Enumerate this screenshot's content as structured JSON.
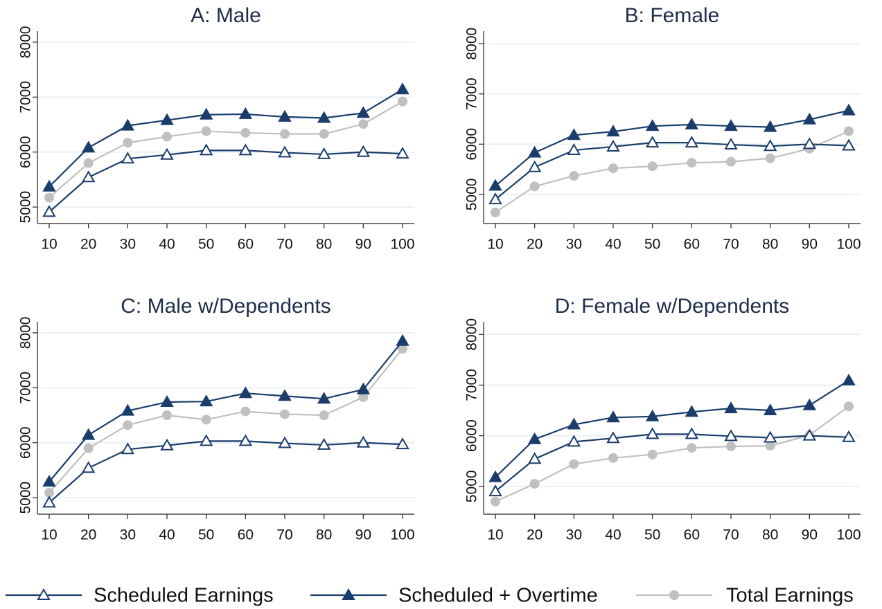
{
  "chart_data": [
    {
      "type": "line",
      "title": "A: Male",
      "x": [
        10,
        20,
        30,
        40,
        50,
        60,
        70,
        80,
        90,
        100
      ],
      "xlim": [
        7,
        103
      ],
      "xticks": [
        10,
        20,
        30,
        40,
        50,
        60,
        70,
        80,
        90,
        100
      ],
      "ylim": [
        4700,
        8200
      ],
      "yticks": [
        5000,
        6000,
        7000,
        8000
      ],
      "grid": true,
      "series": [
        {
          "name": "Scheduled Earnings",
          "color": "#1a3d6b",
          "marker": "triangle-open",
          "values": [
            4910,
            5540,
            5880,
            5950,
            6030,
            6030,
            5990,
            5960,
            6000,
            5970
          ]
        },
        {
          "name": "Scheduled + Overtime",
          "color": "#1a3d6b",
          "marker": "triangle",
          "values": [
            5370,
            6080,
            6480,
            6580,
            6680,
            6690,
            6640,
            6620,
            6710,
            7140
          ]
        },
        {
          "name": "Total Earnings",
          "color": "#c0c0c0",
          "marker": "circle",
          "values": [
            5170,
            5800,
            6170,
            6280,
            6380,
            6350,
            6330,
            6330,
            6510,
            6920
          ]
        }
      ]
    },
    {
      "type": "line",
      "title": "B: Female",
      "x": [
        10,
        20,
        30,
        40,
        50,
        60,
        70,
        80,
        90,
        100
      ],
      "xlim": [
        7,
        103
      ],
      "xticks": [
        10,
        20,
        30,
        40,
        50,
        60,
        70,
        80,
        90,
        100
      ],
      "ylim": [
        4420,
        8250
      ],
      "yticks": [
        5000,
        6000,
        7000,
        8000
      ],
      "grid": true,
      "series": [
        {
          "name": "Scheduled Earnings",
          "color": "#1a3d6b",
          "marker": "triangle-open",
          "values": [
            4900,
            5540,
            5880,
            5950,
            6030,
            6030,
            5990,
            5960,
            6000,
            5970
          ]
        },
        {
          "name": "Scheduled + Overtime",
          "color": "#1a3d6b",
          "marker": "triangle",
          "values": [
            5170,
            5830,
            6180,
            6250,
            6360,
            6390,
            6360,
            6340,
            6490,
            6670
          ]
        },
        {
          "name": "Total Earnings",
          "color": "#c0c0c0",
          "marker": "circle",
          "values": [
            4640,
            5160,
            5370,
            5520,
            5560,
            5630,
            5650,
            5720,
            5910,
            6260
          ]
        }
      ]
    },
    {
      "type": "line",
      "title": "C: Male w/Dependents",
      "x": [
        10,
        20,
        30,
        40,
        50,
        60,
        70,
        80,
        90,
        100
      ],
      "xlim": [
        7,
        103
      ],
      "xticks": [
        10,
        20,
        30,
        40,
        50,
        60,
        70,
        80,
        90,
        100
      ],
      "ylim": [
        4700,
        8200
      ],
      "yticks": [
        5000,
        6000,
        7000,
        8000
      ],
      "grid": true,
      "series": [
        {
          "name": "Scheduled Earnings",
          "color": "#1a3d6b",
          "marker": "triangle-open",
          "values": [
            4910,
            5540,
            5880,
            5950,
            6030,
            6030,
            5990,
            5960,
            6000,
            5970
          ]
        },
        {
          "name": "Scheduled + Overtime",
          "color": "#1a3d6b",
          "marker": "triangle",
          "values": [
            5290,
            6140,
            6580,
            6740,
            6750,
            6900,
            6850,
            6800,
            6970,
            7850
          ]
        },
        {
          "name": "Total Earnings",
          "color": "#c0c0c0",
          "marker": "circle",
          "values": [
            5090,
            5900,
            6320,
            6500,
            6420,
            6570,
            6520,
            6500,
            6830,
            7710
          ]
        }
      ]
    },
    {
      "type": "line",
      "title": "D: Female w/Dependents",
      "x": [
        10,
        20,
        30,
        40,
        50,
        60,
        70,
        80,
        90,
        100
      ],
      "xlim": [
        7,
        103
      ],
      "xticks": [
        10,
        20,
        30,
        40,
        50,
        60,
        70,
        80,
        90,
        100
      ],
      "ylim": [
        4450,
        8250
      ],
      "yticks": [
        5000,
        6000,
        7000,
        8000
      ],
      "grid": true,
      "series": [
        {
          "name": "Scheduled Earnings",
          "color": "#1a3d6b",
          "marker": "triangle-open",
          "values": [
            4900,
            5540,
            5880,
            5950,
            6030,
            6030,
            5990,
            5960,
            6000,
            5970
          ]
        },
        {
          "name": "Scheduled + Overtime",
          "color": "#1a3d6b",
          "marker": "triangle",
          "values": [
            5180,
            5930,
            6220,
            6360,
            6380,
            6470,
            6540,
            6500,
            6600,
            7090
          ]
        },
        {
          "name": "Total Earnings",
          "color": "#c0c0c0",
          "marker": "circle",
          "values": [
            4700,
            5050,
            5440,
            5560,
            5630,
            5760,
            5790,
            5800,
            6010,
            6580
          ]
        }
      ]
    }
  ]
}
